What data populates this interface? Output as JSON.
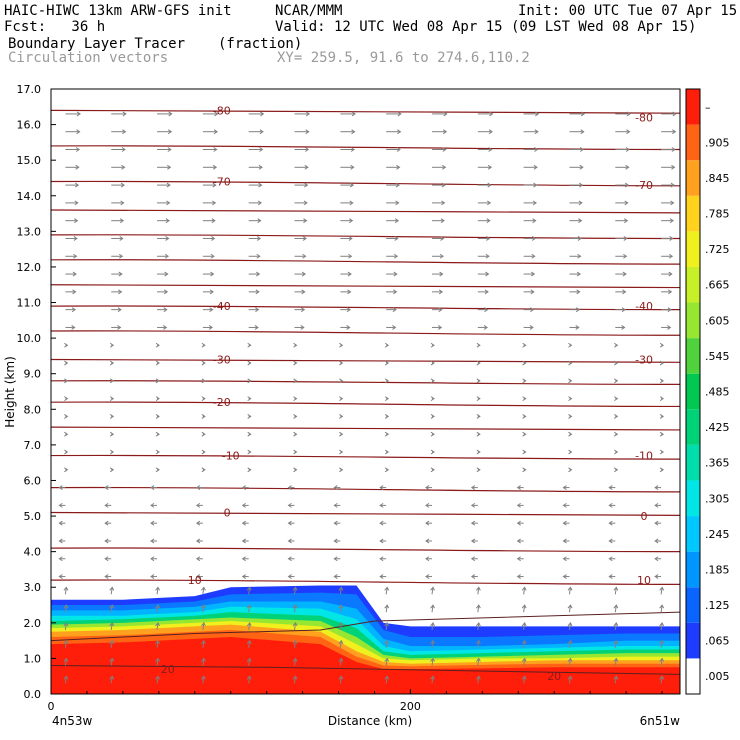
{
  "header": {
    "model": "HAIC-HIWC 13km ARW-GFS init",
    "org": "NCAR/MMM",
    "init": "Init: 00 UTC Tue 07 Apr 15",
    "fcst": "Fcst:   36 h",
    "valid": "Valid: 12 UTC Wed 08 Apr 15 (09 LST Wed 08 Apr 15)",
    "field": "Boundary Layer Tracer",
    "units": "(fraction)",
    "vectors": "Circulation vectors",
    "xy": "XY= 259.5, 91.6 to 274.6,110.2"
  },
  "chart_data": {
    "type": "heatmap",
    "title": "Boundary Layer Tracer",
    "xlabel": "Distance (km)",
    "ylabel": "Height (km)",
    "xlim": [
      0,
      350
    ],
    "ylim": [
      0,
      17
    ],
    "x_ticks": [
      0,
      200
    ],
    "y_ticks": [
      "0.0",
      "1.0",
      "2.0",
      "3.0",
      "4.0",
      "5.0",
      "6.0",
      "7.0",
      "8.0",
      "9.0",
      "10.0",
      "11.0",
      "12.0",
      "13.0",
      "14.0",
      "15.0",
      "16.0",
      "17.0"
    ],
    "x_endpoint_labels": [
      "4n53w",
      "6n51w"
    ],
    "colorbar": {
      "labels": [
        ".005",
        ".065",
        ".125",
        ".185",
        ".245",
        ".305",
        ".365",
        ".425",
        ".485",
        ".545",
        ".605",
        ".665",
        ".725",
        ".785",
        ".845",
        ".905",
        "–"
      ],
      "colors": [
        "#ffffff",
        "#1e3cff",
        "#0a64ff",
        "#0096ff",
        "#00c8ff",
        "#00e6e6",
        "#00dcaa",
        "#00d278",
        "#00c850",
        "#50d23c",
        "#96e632",
        "#c8f028",
        "#f0f01e",
        "#ffd21e",
        "#ffa01e",
        "#ff6414",
        "#ff1e0a"
      ]
    },
    "contour_labels": [
      {
        "value": "-80",
        "x": 95,
        "y": 16.4
      },
      {
        "value": "-80",
        "x": 330,
        "y": 16.2
      },
      {
        "value": "-70",
        "x": 95,
        "y": 14.4
      },
      {
        "value": "-70",
        "x": 330,
        "y": 14.3
      },
      {
        "value": "-40",
        "x": 95,
        "y": 10.9
      },
      {
        "value": "-40",
        "x": 330,
        "y": 10.9
      },
      {
        "value": "-30",
        "x": 95,
        "y": 9.4
      },
      {
        "value": "-30",
        "x": 330,
        "y": 9.4
      },
      {
        "value": "-20",
        "x": 95,
        "y": 8.2
      },
      {
        "value": "-10",
        "x": 100,
        "y": 6.7
      },
      {
        "value": "-10",
        "x": 330,
        "y": 6.7
      },
      {
        "value": "0",
        "x": 98,
        "y": 5.1
      },
      {
        "value": "0",
        "x": 330,
        "y": 5.0
      },
      {
        "value": "10",
        "x": 80,
        "y": 3.2
      },
      {
        "value": "10",
        "x": 330,
        "y": 3.2
      },
      {
        "value": "20",
        "x": 65,
        "y": 0.7
      },
      {
        "value": "20",
        "x": 280,
        "y": 0.5
      }
    ],
    "isotherm_heights_km": [
      16.4,
      15.4,
      14.4,
      13.6,
      12.9,
      12.2,
      11.5,
      10.9,
      10.2,
      9.4,
      8.8,
      8.2,
      7.5,
      6.7,
      5.8,
      5.1,
      4.1,
      3.2
    ]
  },
  "colors": {
    "contour": "#8b1a1a",
    "vector": "#808080"
  }
}
